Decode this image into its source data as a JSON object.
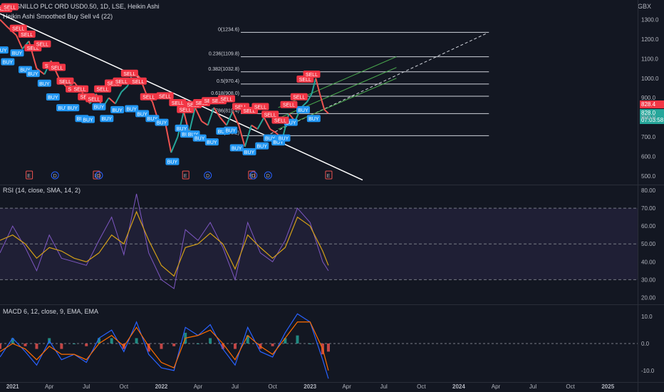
{
  "header": {
    "symbol_line": "FRESNILLO PLC ORD USD0.50, 1D, LSE, Heikin Ashi",
    "indicator_line": "Heikin Ashi Smoothed Buy Sell v4 (22)",
    "currency": "GBX"
  },
  "price_boxes": {
    "close": "828.4",
    "heikin": "828.0",
    "countdown": "07:03:58"
  },
  "colors": {
    "background": "#131722",
    "buy": "#2196f3",
    "sell": "#f23645",
    "up_candle": "#26a69a",
    "down_candle": "#ef5350",
    "rsi_line": "#7e57c2",
    "rsi_ma": "#d4a017",
    "rsi_band": "#7e57c2",
    "macd_line": "#2962ff",
    "signal_line": "#ff6d00",
    "channel": "#4caf50",
    "fib_line": "#d1d4dc"
  },
  "chart_data": [
    {
      "type": "line",
      "panel": "price",
      "title": "FRESNILLO PLC ORD USD0.50, 1D, LSE, Heikin Ashi",
      "ylabel": "GBX",
      "ylim": [
        460,
        1400
      ],
      "y_ticks": [
        "1300.0",
        "1200.0",
        "1100.0",
        "1000.0",
        "900.0",
        "800.0",
        "700.0",
        "600.0",
        "500.0"
      ],
      "x_ticks": [
        "2021",
        "Apr",
        "Jul",
        "Oct",
        "2022",
        "Apr",
        "Jul",
        "Oct",
        "2023",
        "Apr",
        "Jul",
        "Oct",
        "2024",
        "Apr",
        "Jul",
        "Oct",
        "2025"
      ],
      "series": [
        {
          "name": "Heikin Ashi close",
          "x": [
            "2020-12-01",
            "2020-12-20",
            "2021-01-10",
            "2021-01-25",
            "2021-02-10",
            "2021-03-01",
            "2021-03-20",
            "2021-04-05",
            "2021-04-25",
            "2021-05-15",
            "2021-06-01",
            "2021-06-20",
            "2021-07-10",
            "2021-07-25",
            "2021-08-10",
            "2021-08-25",
            "2021-09-10",
            "2021-09-25",
            "2021-10-10",
            "2021-10-25",
            "2021-11-10",
            "2021-11-25",
            "2021-12-10",
            "2021-12-25",
            "2022-01-10",
            "2022-01-25",
            "2022-02-10",
            "2022-02-25",
            "2022-03-10",
            "2022-03-25",
            "2022-04-10",
            "2022-04-25",
            "2022-05-10",
            "2022-05-25",
            "2022-06-10",
            "2022-06-25",
            "2022-07-10",
            "2022-07-25",
            "2022-08-10",
            "2022-08-25",
            "2022-09-10",
            "2022-09-25",
            "2022-10-10",
            "2022-10-25",
            "2022-11-10",
            "2022-11-25",
            "2022-12-10",
            "2022-12-25",
            "2023-01-05",
            "2023-01-15",
            "2023-01-25",
            "2023-02-05",
            "2023-02-15"
          ],
          "values": [
            1300,
            1260,
            1220,
            1150,
            1190,
            1050,
            1020,
            1090,
            1000,
            950,
            980,
            930,
            870,
            920,
            850,
            900,
            870,
            930,
            960,
            1040,
            1000,
            920,
            880,
            780,
            780,
            620,
            700,
            830,
            720,
            850,
            780,
            760,
            850,
            800,
            760,
            830,
            760,
            650,
            760,
            740,
            800,
            740,
            720,
            690,
            820,
            780,
            850,
            880,
            920,
            1000,
            920,
            840,
            820
          ]
        }
      ],
      "signals": {
        "buy": [
          [
            "2020-12-05",
            1170
          ],
          [
            "2020-12-20",
            1110
          ],
          [
            "2021-01-12",
            1155
          ],
          [
            "2021-02-01",
            1070
          ],
          [
            "2021-02-20",
            1050
          ],
          [
            "2021-03-20",
            1000
          ],
          [
            "2021-04-10",
            930
          ],
          [
            "2021-05-05",
            875
          ],
          [
            "2021-05-28",
            875
          ],
          [
            "2021-06-20",
            820
          ],
          [
            "2021-07-05",
            815
          ],
          [
            "2021-08-01",
            880
          ],
          [
            "2021-08-20",
            820
          ],
          [
            "2021-09-15",
            865
          ],
          [
            "2021-10-20",
            870
          ],
          [
            "2021-11-15",
            845
          ],
          [
            "2021-12-10",
            820
          ],
          [
            "2022-01-02",
            800
          ],
          [
            "2022-01-28",
            600
          ],
          [
            "2022-02-20",
            770
          ],
          [
            "2022-03-05",
            740
          ],
          [
            "2022-03-20",
            740
          ],
          [
            "2022-04-05",
            720
          ],
          [
            "2022-05-05",
            700
          ],
          [
            "2022-06-01",
            755
          ],
          [
            "2022-06-20",
            760
          ],
          [
            "2022-07-05",
            670
          ],
          [
            "2022-08-05",
            650
          ],
          [
            "2022-09-05",
            680
          ],
          [
            "2022-09-25",
            720
          ],
          [
            "2022-10-15",
            700
          ],
          [
            "2022-10-28",
            720
          ],
          [
            "2022-11-15",
            800
          ],
          [
            "2022-12-15",
            865
          ],
          [
            "2023-01-10",
            820
          ]
        ],
        "sell": [
          [
            "2020-12-10",
            1330
          ],
          [
            "2020-12-25",
            1340
          ],
          [
            "2021-01-15",
            1230
          ],
          [
            "2021-02-05",
            1200
          ],
          [
            "2021-02-20",
            1130
          ],
          [
            "2021-03-15",
            1150
          ],
          [
            "2021-04-05",
            1040
          ],
          [
            "2021-04-20",
            1030
          ],
          [
            "2021-05-10",
            960
          ],
          [
            "2021-06-01",
            920
          ],
          [
            "2021-06-15",
            920
          ],
          [
            "2021-07-01",
            880
          ],
          [
            "2021-07-20",
            870
          ],
          [
            "2021-08-10",
            920
          ],
          [
            "2021-09-05",
            950
          ],
          [
            "2021-09-25",
            960
          ],
          [
            "2021-10-15",
            1000
          ],
          [
            "2021-11-05",
            960
          ],
          [
            "2021-12-01",
            880
          ],
          [
            "2022-01-10",
            885
          ],
          [
            "2022-02-10",
            850
          ],
          [
            "2022-03-01",
            815
          ],
          [
            "2022-03-20",
            840
          ],
          [
            "2022-04-10",
            850
          ],
          [
            "2022-05-01",
            860
          ],
          [
            "2022-05-20",
            860
          ],
          [
            "2022-06-10",
            870
          ],
          [
            "2022-07-15",
            830
          ],
          [
            "2022-08-05",
            810
          ],
          [
            "2022-09-01",
            830
          ],
          [
            "2022-09-25",
            790
          ],
          [
            "2022-10-20",
            760
          ],
          [
            "2022-11-10",
            840
          ],
          [
            "2022-12-05",
            880
          ],
          [
            "2022-12-20",
            970
          ],
          [
            "2023-01-05",
            995
          ]
        ]
      },
      "events": [
        [
          "2021-02-10",
          "E"
        ],
        [
          "2021-04-15",
          "D"
        ],
        [
          "2021-07-25",
          "E"
        ],
        [
          "2021-08-01",
          "D"
        ],
        [
          "2022-03-01",
          "E"
        ],
        [
          "2022-04-25",
          "D"
        ],
        [
          "2022-08-10",
          "E"
        ],
        [
          "2022-08-15",
          "D"
        ],
        [
          "2022-09-20",
          "D"
        ],
        [
          "2023-02-15",
          "E"
        ]
      ],
      "fibonacci": [
        {
          "label": "0(1234.6)",
          "level": 1234.6
        },
        {
          "label": "0.236(1109.8)",
          "level": 1109.8
        },
        {
          "label": "0.382(1032.8)",
          "level": 1032.8
        },
        {
          "label": "0.5(970.4)",
          "level": 970.4
        },
        {
          "label": "0.618(908.0)",
          "level": 908.0
        },
        {
          "label": "0.786(819.4)",
          "level": 819.4
        },
        {
          "label": "1(706.2)",
          "level": 706.2
        }
      ]
    },
    {
      "type": "line",
      "panel": "rsi",
      "title": "RSI (14, close, SMA, 14, 2)",
      "ylim": [
        17,
        82
      ],
      "y_ticks": [
        "80.00",
        "70.00",
        "60.00",
        "50.00",
        "40.00",
        "30.00",
        "20.00"
      ],
      "bands": [
        30,
        50,
        70
      ],
      "series": [
        {
          "name": "RSI",
          "x": [
            "2020-12-01",
            "2021-01-01",
            "2021-02-01",
            "2021-03-01",
            "2021-04-01",
            "2021-05-01",
            "2021-06-01",
            "2021-07-01",
            "2021-08-01",
            "2021-09-01",
            "2021-10-01",
            "2021-11-01",
            "2021-12-01",
            "2022-01-01",
            "2022-02-01",
            "2022-03-01",
            "2022-04-01",
            "2022-05-01",
            "2022-06-01",
            "2022-07-01",
            "2022-08-01",
            "2022-09-01",
            "2022-10-01",
            "2022-11-01",
            "2022-12-01",
            "2023-01-01",
            "2023-02-01",
            "2023-02-15"
          ],
          "values": [
            45,
            60,
            48,
            35,
            55,
            42,
            40,
            38,
            52,
            65,
            44,
            78,
            45,
            30,
            25,
            58,
            52,
            62,
            48,
            30,
            62,
            45,
            40,
            52,
            70,
            62,
            40,
            35
          ]
        },
        {
          "name": "RSI-based MA",
          "x": [
            "2020-12-01",
            "2021-01-01",
            "2021-02-01",
            "2021-03-01",
            "2021-04-01",
            "2021-05-01",
            "2021-06-01",
            "2021-07-01",
            "2021-08-01",
            "2021-09-01",
            "2021-10-01",
            "2021-11-01",
            "2021-12-01",
            "2022-01-01",
            "2022-02-01",
            "2022-03-01",
            "2022-04-01",
            "2022-05-01",
            "2022-06-01",
            "2022-07-01",
            "2022-08-01",
            "2022-09-01",
            "2022-10-01",
            "2022-11-01",
            "2022-12-01",
            "2023-01-01",
            "2023-02-01",
            "2023-02-15"
          ],
          "values": [
            52,
            55,
            50,
            42,
            48,
            46,
            42,
            40,
            45,
            55,
            50,
            68,
            52,
            38,
            32,
            48,
            50,
            56,
            50,
            36,
            55,
            48,
            42,
            48,
            65,
            60,
            46,
            38
          ]
        }
      ]
    },
    {
      "type": "bar",
      "panel": "macd",
      "title": "MACD 6, 12, close, 9, EMA, EMA",
      "ylim": [
        -14,
        14
      ],
      "y_ticks": [
        "10.0",
        "0.0",
        "-10.0"
      ],
      "series": [
        {
          "name": "MACD",
          "x": [
            "2020-12-01",
            "2021-01-01",
            "2021-02-01",
            "2021-03-01",
            "2021-04-01",
            "2021-05-01",
            "2021-06-01",
            "2021-07-01",
            "2021-08-01",
            "2021-09-01",
            "2021-10-01",
            "2021-11-01",
            "2021-12-01",
            "2022-01-01",
            "2022-02-01",
            "2022-03-01",
            "2022-04-01",
            "2022-05-01",
            "2022-06-01",
            "2022-07-01",
            "2022-08-01",
            "2022-09-01",
            "2022-10-01",
            "2022-11-01",
            "2022-12-01",
            "2023-01-01",
            "2023-02-01",
            "2023-02-15"
          ],
          "values": [
            -5,
            2,
            -3,
            -8,
            1,
            -6,
            -4,
            -7,
            2,
            5,
            -3,
            8,
            -4,
            -9,
            -10,
            6,
            3,
            7,
            -2,
            -8,
            6,
            -3,
            -5,
            4,
            11,
            8,
            -6,
            -13
          ]
        },
        {
          "name": "Signal",
          "x": [
            "2020-12-01",
            "2021-01-01",
            "2021-02-01",
            "2021-03-01",
            "2021-04-01",
            "2021-05-01",
            "2021-06-01",
            "2021-07-01",
            "2021-08-01",
            "2021-09-01",
            "2021-10-01",
            "2021-11-01",
            "2021-12-01",
            "2022-01-01",
            "2022-02-01",
            "2022-03-01",
            "2022-04-01",
            "2022-05-01",
            "2022-06-01",
            "2022-07-01",
            "2022-08-01",
            "2022-09-01",
            "2022-10-01",
            "2022-11-01",
            "2022-12-01",
            "2023-01-01",
            "2023-02-01",
            "2023-02-15"
          ],
          "values": [
            -3,
            0,
            -2,
            -6,
            -1,
            -4,
            -4,
            -6,
            0,
            3,
            -1,
            6,
            -1,
            -7,
            -9,
            2,
            3,
            5,
            0,
            -6,
            3,
            -1,
            -4,
            2,
            8,
            8,
            -2,
            -10
          ]
        }
      ]
    }
  ]
}
